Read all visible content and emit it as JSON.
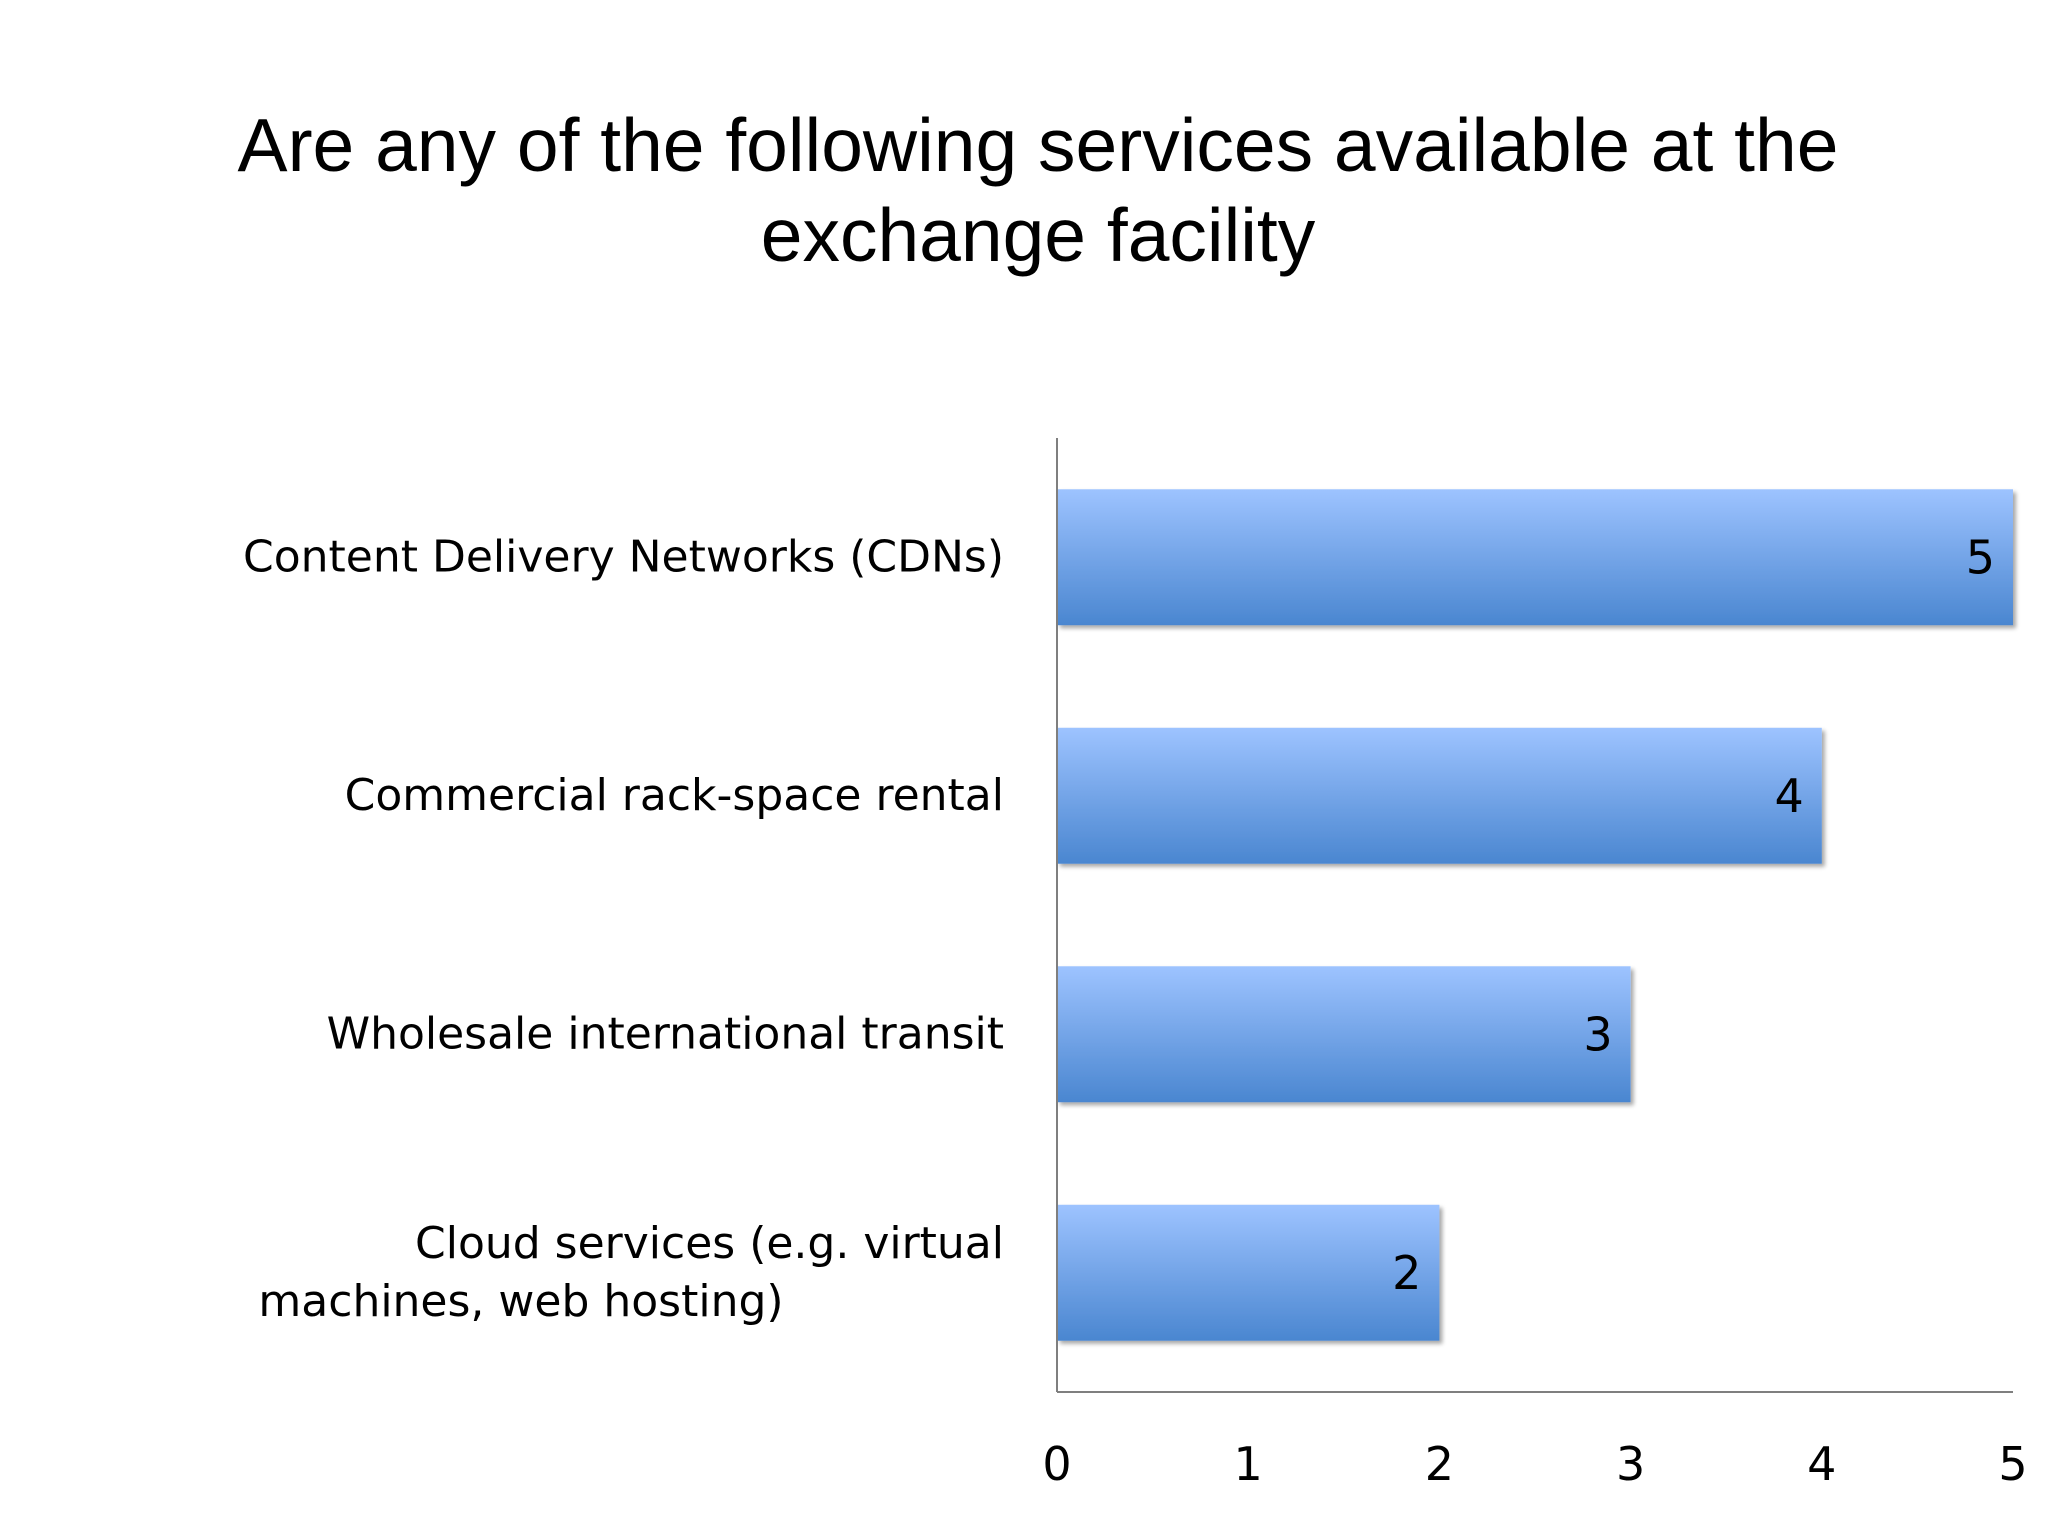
{
  "chart_data": {
    "type": "bar",
    "orientation": "horizontal",
    "title": "Are any of the following services available at the exchange facility",
    "categories": [
      "Content Delivery Networks (CDNs)",
      "Commercial rack-space rental",
      "Wholesale international transit",
      "Cloud services (e.g. virtual machines, web hosting)"
    ],
    "values": [
      5,
      4,
      3,
      2
    ],
    "data_labels": [
      "5",
      "4",
      "3",
      "2"
    ],
    "xlim": [
      0,
      5
    ],
    "xticks": [
      "0",
      "1",
      "2",
      "3",
      "4",
      "5"
    ],
    "grid": false,
    "legend": "none",
    "colors": {
      "bar_top": "#9DC3FF",
      "bar_bottom": "#4A86D0",
      "axis": "#7F7F7F"
    }
  }
}
